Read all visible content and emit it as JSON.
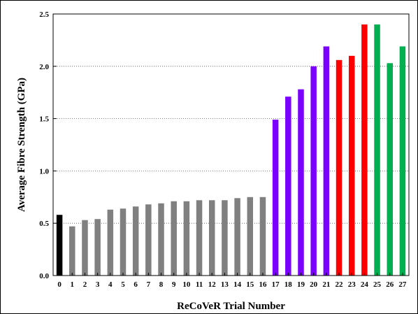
{
  "chart_data": {
    "type": "bar",
    "xlabel": "ReCoVeR Trial Number",
    "ylabel": "Average Fibre Strength (GPa)",
    "ylim": [
      0,
      2.5
    ],
    "yticks": [
      "0.0",
      "0.5",
      "1.0",
      "1.5",
      "2.0",
      "2.5"
    ],
    "grid": true,
    "categories": [
      "0",
      "1",
      "2",
      "3",
      "4",
      "5",
      "6",
      "7",
      "8",
      "9",
      "10",
      "11",
      "12",
      "13",
      "14",
      "15",
      "16",
      "17",
      "18",
      "19",
      "20",
      "21",
      "22",
      "23",
      "24",
      "25",
      "26",
      "27"
    ],
    "values": [
      0.58,
      0.47,
      0.53,
      0.54,
      0.63,
      0.64,
      0.66,
      0.68,
      0.69,
      0.71,
      0.71,
      0.72,
      0.72,
      0.72,
      0.74,
      0.75,
      0.75,
      1.49,
      1.71,
      1.78,
      2.0,
      2.19,
      2.06,
      2.1,
      2.4,
      2.4,
      2.03,
      2.19
    ],
    "bar_colors": [
      "#000000",
      "#808080",
      "#808080",
      "#808080",
      "#808080",
      "#808080",
      "#808080",
      "#808080",
      "#808080",
      "#808080",
      "#808080",
      "#808080",
      "#808080",
      "#808080",
      "#808080",
      "#808080",
      "#808080",
      "#7a00ff",
      "#7a00ff",
      "#7a00ff",
      "#7a00ff",
      "#7a00ff",
      "#ff0000",
      "#ff0000",
      "#ff0000",
      "#00b050",
      "#00b050",
      "#00b050"
    ]
  }
}
